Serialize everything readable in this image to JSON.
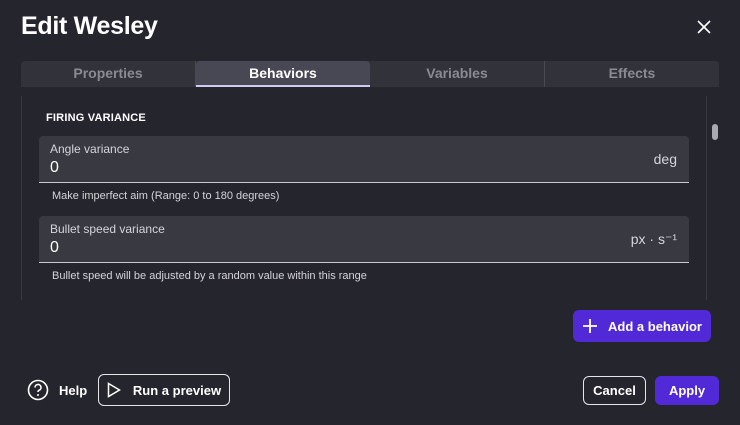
{
  "dialog": {
    "title": "Edit Wesley"
  },
  "tabs": [
    {
      "label": "Properties"
    },
    {
      "label": "Behaviors",
      "active": true
    },
    {
      "label": "Variables"
    },
    {
      "label": "Effects"
    }
  ],
  "section": {
    "title": "FIRING VARIANCE"
  },
  "fields": [
    {
      "label": "Angle variance",
      "value": "0",
      "unit": "deg",
      "help": "Make imperfect aim (Range: 0 to 180 degrees)"
    },
    {
      "label": "Bullet speed variance",
      "value": "0",
      "unit": "px · s⁻¹",
      "help": "Bullet speed will be adjusted by a random value within this range"
    }
  ],
  "actions": {
    "add_behavior": "Add a behavior",
    "help": "Help",
    "run_preview": "Run a preview",
    "cancel": "Cancel",
    "apply": "Apply"
  },
  "colors": {
    "accent": "#5229d6",
    "background": "#25252e"
  }
}
